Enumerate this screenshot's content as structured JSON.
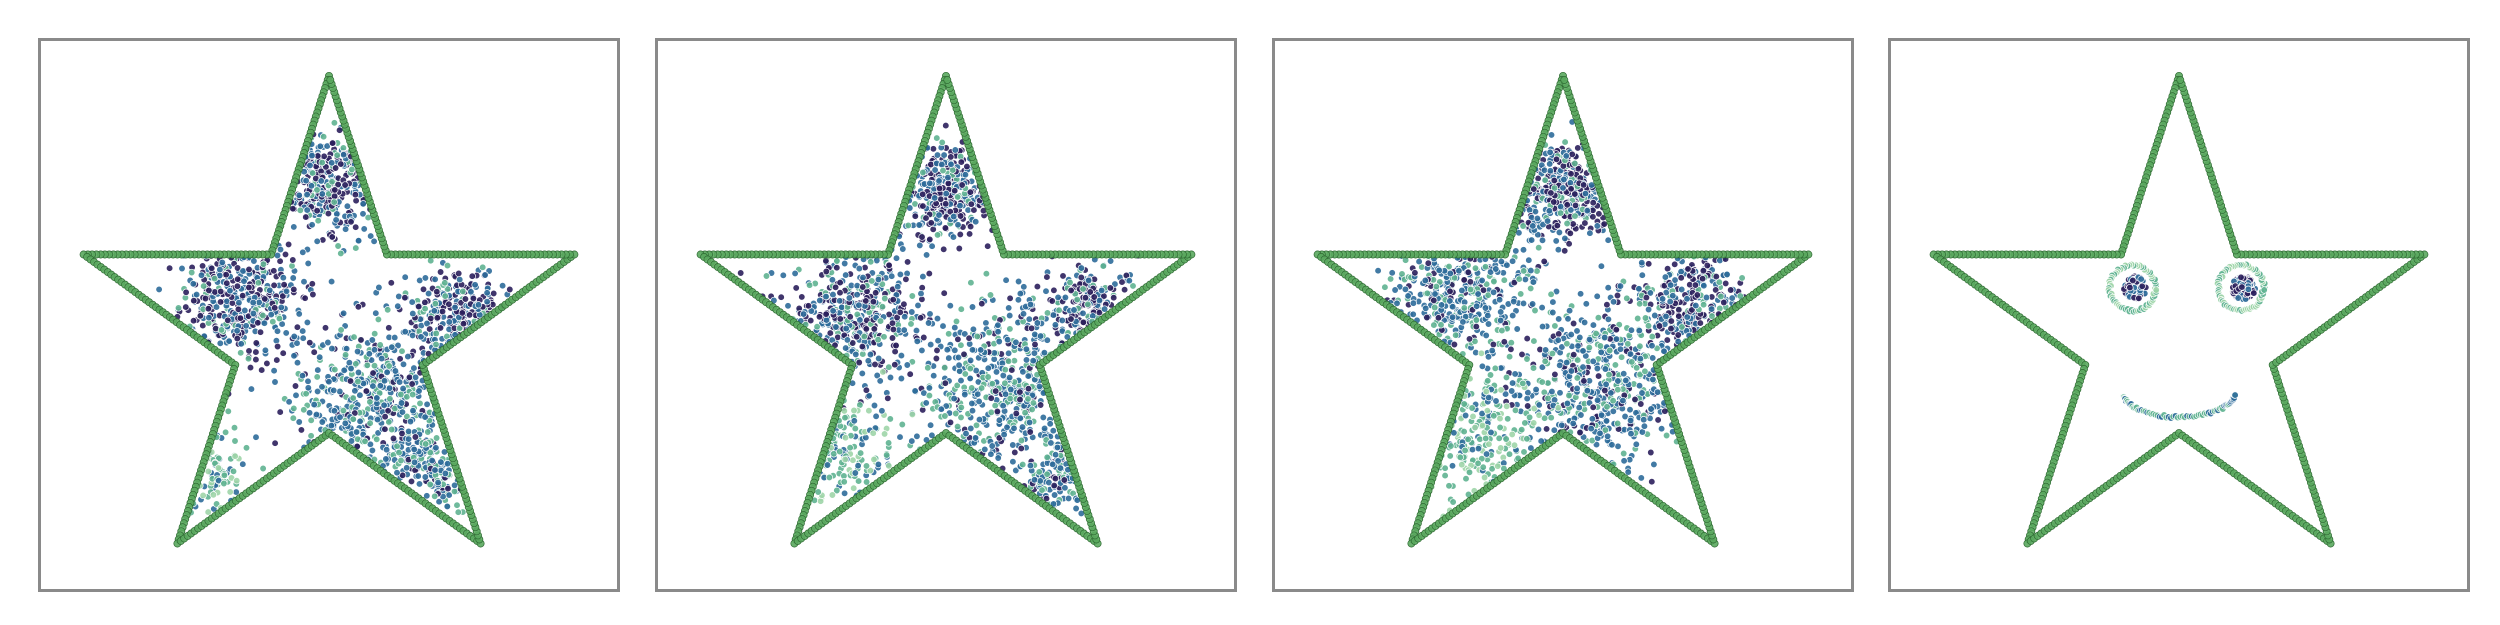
{
  "figure": {
    "panels": [
      {
        "id": "panel-1"
      },
      {
        "id": "panel-2"
      },
      {
        "id": "panel-3"
      },
      {
        "id": "panel-4"
      }
    ]
  },
  "colors": {
    "outline_fill": "#5aa85e",
    "outline_edge": "#2f6b33",
    "scatter_dark": "#2b1f5c",
    "scatter_mid": "#2e6b9a",
    "scatter_light": "#5fb391",
    "scatter_pale": "#9fd5a8",
    "panel_border": "#8a8a8a"
  },
  "chart_data": [
    {
      "type": "scatter",
      "title": "",
      "xlabel": "",
      "ylabel": "",
      "xlim": [
        -1.0,
        1.0
      ],
      "ylim": [
        -0.9,
        1.05
      ],
      "grid": false,
      "outline": "star",
      "point_color": "density (viridis-like)",
      "clusters": [
        {
          "x": 0.0,
          "y": 0.58,
          "spread": 0.1,
          "n": 320,
          "density": "high"
        },
        {
          "x": -0.33,
          "y": 0.12,
          "spread": 0.12,
          "n": 420,
          "density": "high"
        },
        {
          "x": 0.5,
          "y": 0.06,
          "spread": 0.1,
          "n": 260,
          "density": "high"
        },
        {
          "x": 0.18,
          "y": -0.25,
          "spread": 0.15,
          "n": 520,
          "density": "medium"
        },
        {
          "x": 0.42,
          "y": -0.52,
          "spread": 0.09,
          "n": 140,
          "density": "medium"
        },
        {
          "x": -0.45,
          "y": -0.55,
          "spread": 0.08,
          "n": 90,
          "density": "low"
        }
      ]
    },
    {
      "type": "scatter",
      "title": "",
      "xlabel": "",
      "ylabel": "",
      "xlim": [
        -1.0,
        1.0
      ],
      "ylim": [
        -0.9,
        1.05
      ],
      "grid": false,
      "outline": "star",
      "point_color": "density (viridis-like)",
      "clusters": [
        {
          "x": 0.0,
          "y": 0.55,
          "spread": 0.09,
          "n": 340,
          "density": "high"
        },
        {
          "x": -0.35,
          "y": 0.1,
          "spread": 0.13,
          "n": 440,
          "density": "high"
        },
        {
          "x": 0.55,
          "y": 0.1,
          "spread": 0.08,
          "n": 200,
          "density": "high"
        },
        {
          "x": 0.2,
          "y": -0.2,
          "spread": 0.16,
          "n": 480,
          "density": "medium"
        },
        {
          "x": 0.45,
          "y": -0.55,
          "spread": 0.08,
          "n": 120,
          "density": "medium"
        },
        {
          "x": -0.4,
          "y": -0.45,
          "spread": 0.12,
          "n": 140,
          "density": "low"
        }
      ]
    },
    {
      "type": "scatter",
      "title": "",
      "xlabel": "",
      "ylabel": "",
      "xlim": [
        -1.0,
        1.0
      ],
      "ylim": [
        -0.9,
        1.05
      ],
      "grid": false,
      "outline": "star",
      "point_color": "density (viridis-like)",
      "clusters": [
        {
          "x": -0.02,
          "y": 0.55,
          "spread": 0.1,
          "n": 360,
          "density": "high"
        },
        {
          "x": -0.38,
          "y": 0.18,
          "spread": 0.14,
          "n": 380,
          "density": "medium"
        },
        {
          "x": 0.5,
          "y": 0.12,
          "spread": 0.11,
          "n": 260,
          "density": "high"
        },
        {
          "x": 0.15,
          "y": -0.18,
          "spread": 0.17,
          "n": 560,
          "density": "medium"
        },
        {
          "x": -0.35,
          "y": -0.38,
          "spread": 0.14,
          "n": 220,
          "density": "low"
        }
      ]
    },
    {
      "type": "scatter",
      "title": "",
      "xlabel": "",
      "ylabel": "",
      "xlim": [
        -1.0,
        1.0
      ],
      "ylim": [
        -0.9,
        1.05
      ],
      "grid": false,
      "outline": "star",
      "point_color": "density (viridis-like)",
      "features": [
        {
          "name": "left-eye",
          "center": [
            -0.18,
            0.18
          ],
          "ring_radius": 0.09,
          "core_radius": 0.045
        },
        {
          "name": "right-eye",
          "center": [
            0.24,
            0.18
          ],
          "ring_radius": 0.09,
          "core_radius": 0.045
        },
        {
          "name": "smile",
          "center": [
            0.0,
            -0.22
          ],
          "radius_x": 0.22,
          "radius_y": 0.1
        }
      ]
    }
  ]
}
